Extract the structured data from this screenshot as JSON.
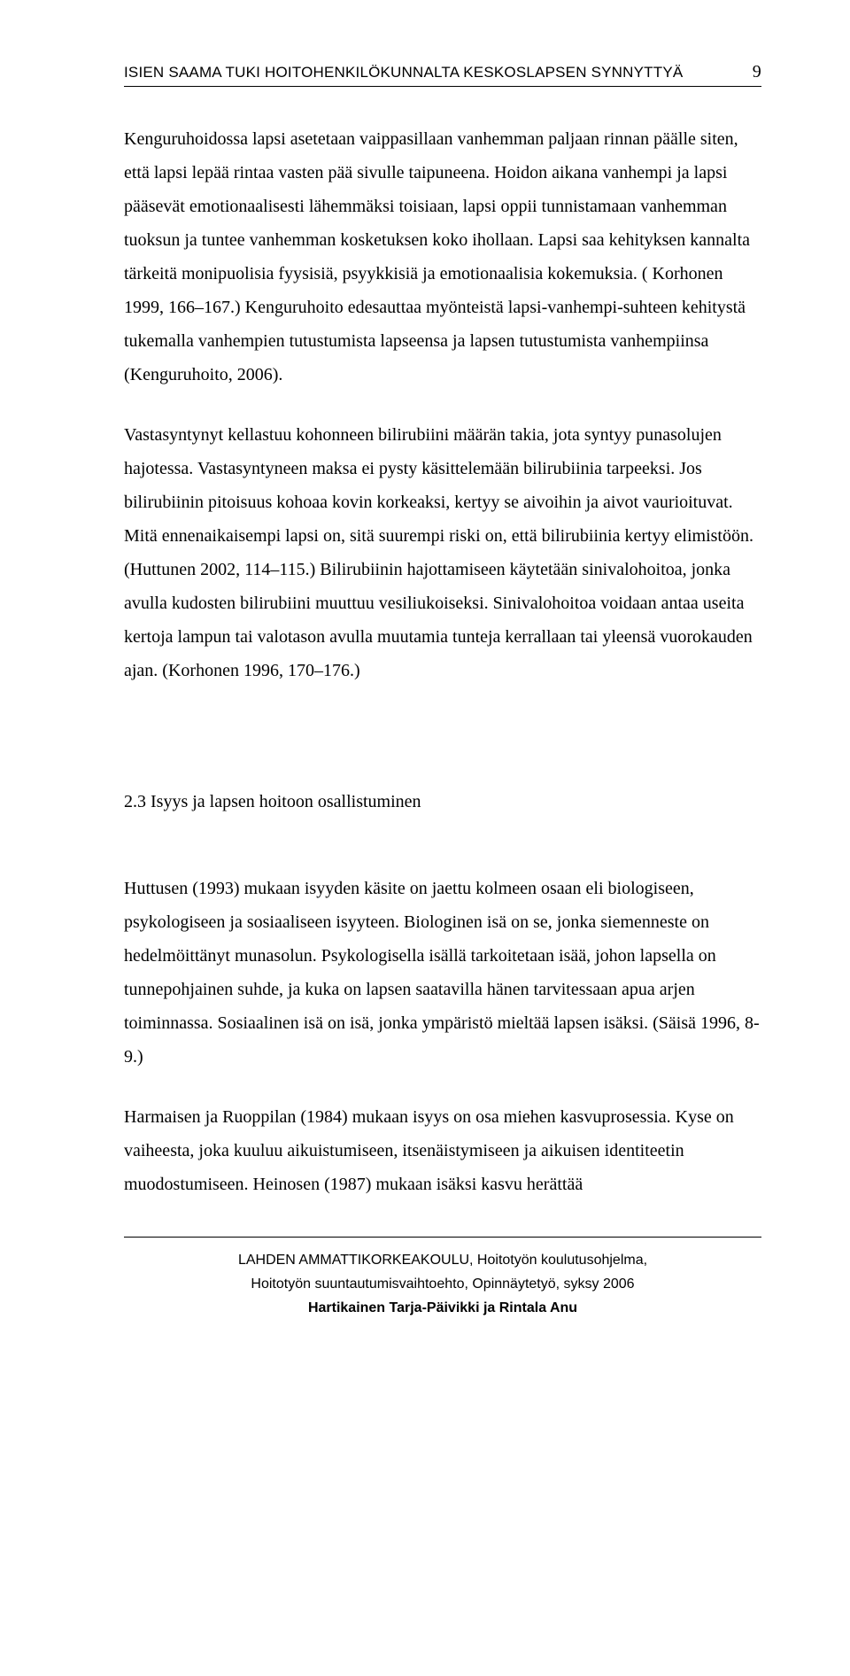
{
  "header": {
    "running_title": "ISIEN SAAMA TUKI HOITOHENKILÖKUNNALTA KESKOSLAPSEN SYNNYTTYÄ",
    "page_number": "9"
  },
  "paragraphs": {
    "p1": "Kenguruhoidossa lapsi asetetaan vaippasillaan vanhemman paljaan rinnan päälle siten, että lapsi lepää rintaa vasten pää sivulle taipuneena. Hoidon aikana vanhempi ja lapsi pääsevät emotionaalisesti lähemmäksi toisiaan, lapsi oppii tunnistamaan vanhemman tuoksun ja tuntee vanhemman kosketuksen koko ihollaan. Lapsi saa kehityksen kannalta tärkeitä monipuolisia fyysisiä, psyykkisiä ja emotionaalisia kokemuksia. ( Korhonen 1999, 166–167.) Kenguruhoito edesauttaa myönteistä lapsi-vanhempi-suhteen kehitystä tukemalla vanhempien tutustumista lapseensa ja lapsen tutustumista vanhempiinsa (Kenguruhoito, 2006).",
    "p2": "Vastasyntynyt kellastuu kohonneen bilirubiini määrän takia, jota syntyy punasolujen hajotessa. Vastasyntyneen maksa ei pysty käsittelemään bilirubiinia tarpeeksi. Jos bilirubiinin pitoisuus kohoaa kovin korkeaksi, kertyy se aivoihin ja aivot vaurioituvat. Mitä ennenaikaisempi lapsi on, sitä suurempi riski on, että bilirubiinia kertyy elimistöön. (Huttunen 2002, 114–115.) Bilirubiinin hajottamiseen käytetään sinivalohoitoa, jonka avulla kudosten bilirubiini muuttuu vesiliukoiseksi.  Sinivalohoitoa voidaan antaa useita kertoja lampun tai valotason avulla muutamia tunteja kerrallaan tai yleensä vuorokauden ajan. (Korhonen 1996, 170–176.)",
    "section_title": "2.3 Isyys ja lapsen hoitoon osallistuminen",
    "p3": "Huttusen (1993) mukaan isyyden käsite on jaettu kolmeen osaan eli biologiseen, psykologiseen ja sosiaaliseen isyyteen. Biologinen isä on se, jonka siemenneste on hedelmöittänyt munasolun. Psykologisella isällä tarkoitetaan isää, johon lapsella on tunnepohjainen suhde, ja kuka on lapsen saatavilla hänen tarvitessaan apua arjen toiminnassa. Sosiaalinen isä on isä, jonka ympäristö mieltää lapsen isäksi. (Säisä 1996, 8-9.)",
    "p4": "Harmaisen ja Ruoppilan (1984) mukaan isyys on osa miehen kasvuprosessia. Kyse on vaiheesta, joka kuuluu aikuistumiseen, itsenäistymiseen ja aikuisen identiteetin muodostumiseen. Heinosen (1987) mukaan isäksi kasvu herättää"
  },
  "footer": {
    "line1": "LAHDEN AMMATTIKORKEAKOULU, Hoitotyön koulutusohjelma,",
    "line2": "Hoitotyön suuntautumisvaihtoehto, Opinnäytetyö, syksy 2006",
    "line3": "Hartikainen Tarja-Päivikki ja Rintala Anu"
  }
}
